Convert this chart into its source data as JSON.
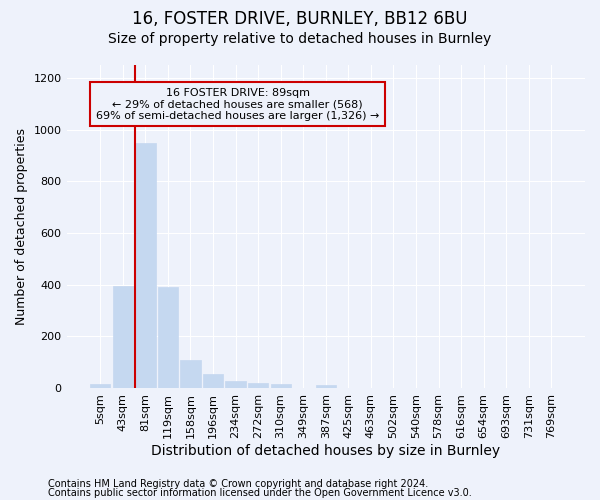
{
  "title1": "16, FOSTER DRIVE, BURNLEY, BB12 6BU",
  "title2": "Size of property relative to detached houses in Burnley",
  "xlabel": "Distribution of detached houses by size in Burnley",
  "ylabel": "Number of detached properties",
  "annotation_line1": "16 FOSTER DRIVE: 89sqm",
  "annotation_line2": "← 29% of detached houses are smaller (568)",
  "annotation_line3": "69% of semi-detached houses are larger (1,326) →",
  "footer1": "Contains HM Land Registry data © Crown copyright and database right 2024.",
  "footer2": "Contains public sector information licensed under the Open Government Licence v3.0.",
  "categories": [
    "5sqm",
    "43sqm",
    "81sqm",
    "119sqm",
    "158sqm",
    "196sqm",
    "234sqm",
    "272sqm",
    "310sqm",
    "349sqm",
    "387sqm",
    "425sqm",
    "463sqm",
    "502sqm",
    "540sqm",
    "578sqm",
    "616sqm",
    "654sqm",
    "693sqm",
    "731sqm",
    "769sqm"
  ],
  "values": [
    15,
    395,
    950,
    390,
    110,
    55,
    25,
    20,
    15,
    0,
    12,
    0,
    0,
    0,
    0,
    0,
    0,
    0,
    0,
    0,
    0
  ],
  "bar_color": "#c5d8f0",
  "bar_edgecolor": "#c5d8f0",
  "vline_color": "#cc0000",
  "annotation_box_color": "#cc0000",
  "vline_index": 2,
  "ylim": [
    0,
    1250
  ],
  "yticks": [
    0,
    200,
    400,
    600,
    800,
    1000,
    1200
  ],
  "bg_color": "#eef2fb",
  "grid_color": "#ffffff",
  "title1_fontsize": 12,
  "title2_fontsize": 10,
  "tick_fontsize": 8,
  "ylabel_fontsize": 9,
  "xlabel_fontsize": 10,
  "footer_fontsize": 7
}
